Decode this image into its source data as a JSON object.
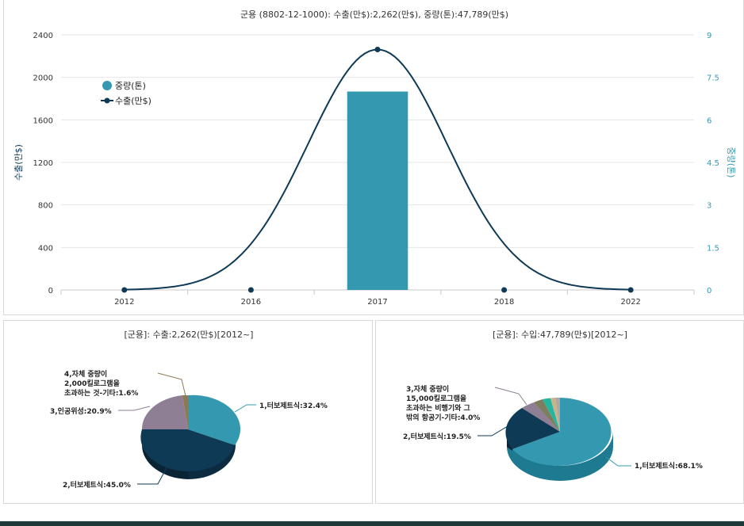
{
  "colors": {
    "bar": "#3499b0",
    "line": "#0e3a56",
    "pie_teal": "#3499b0",
    "pie_navy": "#0e3a56",
    "pie_mauve": "#8e7f94",
    "pie_olive": "#7d7d60",
    "pie_green": "#24b5a0",
    "pie_tan": "#c8b48a",
    "axis_right": "#3499b0",
    "grid": "#e6e6e6"
  },
  "chart_data": [
    {
      "type": "bar+line",
      "title": "군용 (8802-12-1000): 수출(만$):2,262(만$), 중량(톤):47,789(만$)",
      "categories": [
        "2012",
        "2016",
        "2017",
        "2018",
        "2022"
      ],
      "series": [
        {
          "name": "중량(톤)",
          "type": "bar",
          "axis": "right",
          "values": [
            0,
            0,
            7,
            0,
            0
          ]
        },
        {
          "name": "수출(만$)",
          "type": "line",
          "axis": "left",
          "values": [
            0,
            0,
            2262,
            0,
            0
          ]
        }
      ],
      "ylabel": "수출(만$)",
      "ylabel_right": "중량(톤)",
      "ylim": [
        0,
        2400
      ],
      "yticks": [
        "0",
        "400",
        "800",
        "1200",
        "1600",
        "2000",
        "2400"
      ],
      "ylim_right": [
        0,
        9
      ],
      "yticks_right": [
        "0",
        "1.5",
        "3",
        "4.5",
        "6",
        "7.5",
        "9"
      ],
      "legend_position": "top-left",
      "grid": true
    },
    {
      "type": "pie",
      "title": "[군용]: 수출:2,262(만$)[2012~]",
      "slices": [
        {
          "label": "1,터보제트식:32.4%",
          "value": 32.4
        },
        {
          "label": "2,터보제트식:45.0%",
          "value": 45.0
        },
        {
          "label": "3,인공위성:20.9%",
          "value": 20.9
        },
        {
          "label": "4,자체 중량이 2,000킬로그램을 초과하는 것-기타:1.6%",
          "value": 1.6
        }
      ]
    },
    {
      "type": "pie",
      "title": "[군용]: 수입:47,789(만$)[2012~]",
      "slices": [
        {
          "label": "1,터보제트식:68.1%",
          "value": 68.1
        },
        {
          "label": "2,터보제트식:19.5%",
          "value": 19.5
        },
        {
          "label": "3,자체 중량이 15,000킬로그램을 초과하는 비행기와 그 밖의 항공기-기타:4.0%",
          "value": 4.0
        },
        {
          "label": "",
          "value": 2.6
        },
        {
          "label": "",
          "value": 2.4
        },
        {
          "label": "",
          "value": 1.9
        },
        {
          "label": "",
          "value": 1.5
        }
      ]
    }
  ],
  "pie_left_text": {
    "l1": "1,터보제트식:32.4%",
    "l2": "2,터보제트식:45.0%",
    "l3": "3,인공위성:20.9%",
    "l4a": "4,자체 중량이",
    "l4b": "2,000킬로그램을",
    "l4c": "초과하는 것-기타:1.6%"
  },
  "pie_right_text": {
    "l1": "1,터보제트식:68.1%",
    "l2": "2,터보제트식:19.5%",
    "l3a": "3,자체 중량이",
    "l3b": "15,000킬로그램을",
    "l3c": "초과하는 비행기와 그",
    "l3d": "밖의 항공기-기타:4.0%"
  }
}
